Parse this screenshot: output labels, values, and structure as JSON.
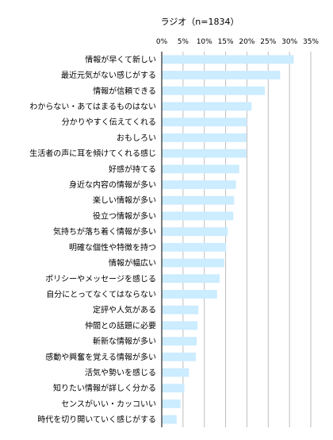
{
  "chart_data": {
    "type": "bar",
    "orientation": "horizontal",
    "title": "ラジオ（n=1834）",
    "xlabel": "",
    "ylabel": "",
    "xlim": [
      0,
      35
    ],
    "ticks": [
      "0%",
      "5%",
      "10%",
      "15%",
      "20%",
      "25%",
      "30%",
      "35%"
    ],
    "tick_values": [
      0,
      5,
      10,
      15,
      20,
      25,
      30,
      35
    ],
    "grid": true,
    "legend": "none",
    "bar_color": "#ccecff",
    "categories": [
      "情報が早くて新しい",
      "最近元気がない感じがする",
      "情報が信頼できる",
      "わからない・あてはまるものはない",
      "分かりやすく伝えてくれる",
      "おもしろい",
      "生活者の声に耳を傾けてくれる感じ",
      "好感が持てる",
      "身近な内容の情報が多い",
      "楽しい情報が多い",
      "役立つ情報が多い",
      "気持ちが落ち着く情報が多い",
      "明確な個性や特徴を持つ",
      "情報が幅広い",
      "ポリシーやメッセージを感じる",
      "自分にとってなくてはならない",
      "定評や人気がある",
      "仲間との話題に必要",
      "斬新な情報が多い",
      "感動や興奮を覚える情報が多い",
      "活気や勢いを感じる",
      "知りたい情報が詳しく分かる",
      "センスがいい・カッコいい",
      "時代を切り開いていく感じがする"
    ],
    "values": [
      31.0,
      27.8,
      24.2,
      21.1,
      20.0,
      19.9,
      19.9,
      18.2,
      17.4,
      17.0,
      16.8,
      15.5,
      15.1,
      14.7,
      13.6,
      13.0,
      8.6,
      8.4,
      8.2,
      8.0,
      6.4,
      5.3,
      4.4,
      3.5
    ]
  }
}
